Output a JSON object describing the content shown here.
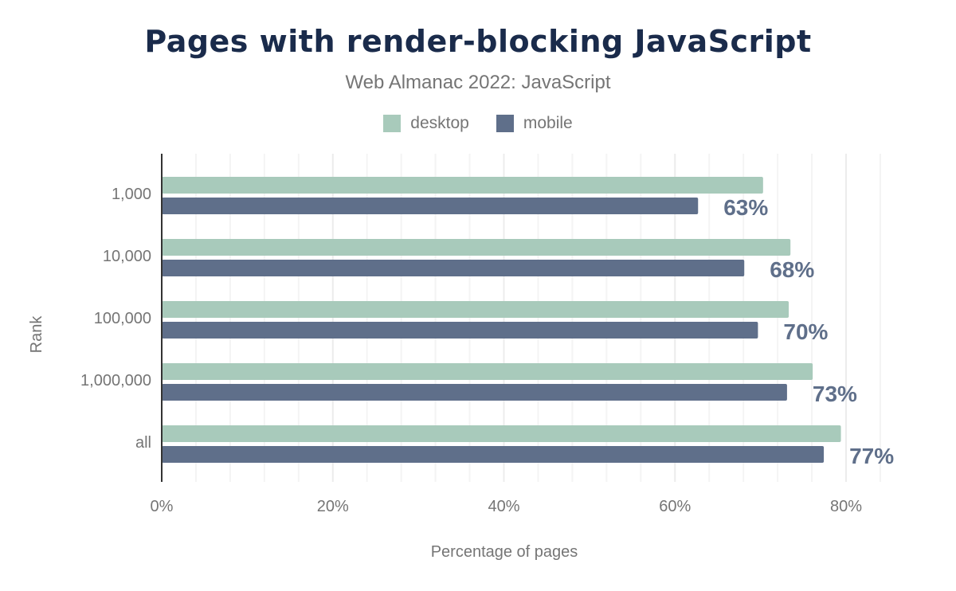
{
  "chart_data": {
    "type": "bar",
    "orientation": "horizontal",
    "title": "Pages with render-blocking JavaScript",
    "subtitle": "Web Almanac 2022: JavaScript",
    "xlabel": "Percentage of pages",
    "ylabel": "Rank",
    "xlim": [
      0,
      85
    ],
    "xticks": [
      "0%",
      "20%",
      "40%",
      "60%",
      "80%"
    ],
    "grid": true,
    "legend_position": "top",
    "categories": [
      "1,000",
      "10,000",
      "100,000",
      "1,000,000",
      "all"
    ],
    "series": [
      {
        "name": "desktop",
        "color": "#a8cabb",
        "values": [
          70.3,
          73.5,
          73.3,
          76.1,
          79.4
        ]
      },
      {
        "name": "mobile",
        "color": "#5f6f8a",
        "values": [
          62.7,
          68.1,
          69.7,
          73.1,
          77.4
        ],
        "data_labels": [
          "63%",
          "68%",
          "70%",
          "73%",
          "77%"
        ]
      }
    ]
  }
}
